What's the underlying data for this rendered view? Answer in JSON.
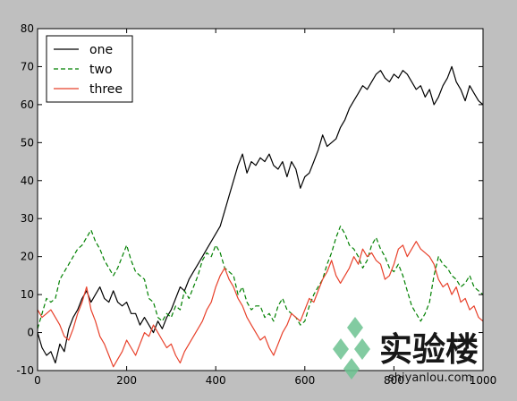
{
  "chart_data": {
    "type": "line",
    "title": "",
    "xlabel": "",
    "ylabel": "",
    "xlim": [
      0,
      1000
    ],
    "ylim": [
      -10,
      80
    ],
    "xticks": [
      0,
      200,
      400,
      600,
      800,
      1000
    ],
    "yticks": [
      -10,
      0,
      10,
      20,
      30,
      40,
      50,
      60,
      70,
      80
    ],
    "grid": false,
    "legend_position": "upper-left",
    "series": [
      {
        "name": "one",
        "color": "#000000",
        "style": "solid",
        "points": [
          [
            0,
            0
          ],
          [
            10,
            -4
          ],
          [
            20,
            -6
          ],
          [
            30,
            -5
          ],
          [
            40,
            -8
          ],
          [
            50,
            -3
          ],
          [
            60,
            -5
          ],
          [
            70,
            1
          ],
          [
            80,
            4
          ],
          [
            90,
            6
          ],
          [
            100,
            9
          ],
          [
            110,
            11
          ],
          [
            120,
            8
          ],
          [
            130,
            10
          ],
          [
            140,
            12
          ],
          [
            150,
            9
          ],
          [
            160,
            8
          ],
          [
            170,
            11
          ],
          [
            180,
            8
          ],
          [
            190,
            7
          ],
          [
            200,
            8
          ],
          [
            210,
            5
          ],
          [
            220,
            5
          ],
          [
            230,
            2
          ],
          [
            240,
            4
          ],
          [
            250,
            2
          ],
          [
            260,
            0
          ],
          [
            270,
            3
          ],
          [
            280,
            1
          ],
          [
            290,
            4
          ],
          [
            300,
            6
          ],
          [
            310,
            9
          ],
          [
            320,
            12
          ],
          [
            330,
            11
          ],
          [
            340,
            14
          ],
          [
            350,
            16
          ],
          [
            360,
            18
          ],
          [
            370,
            20
          ],
          [
            380,
            22
          ],
          [
            390,
            24
          ],
          [
            400,
            26
          ],
          [
            410,
            28
          ],
          [
            420,
            32
          ],
          [
            430,
            36
          ],
          [
            440,
            40
          ],
          [
            450,
            44
          ],
          [
            460,
            47
          ],
          [
            470,
            42
          ],
          [
            480,
            45
          ],
          [
            490,
            44
          ],
          [
            500,
            46
          ],
          [
            510,
            45
          ],
          [
            520,
            47
          ],
          [
            530,
            44
          ],
          [
            540,
            43
          ],
          [
            550,
            45
          ],
          [
            560,
            41
          ],
          [
            570,
            45
          ],
          [
            580,
            43
          ],
          [
            590,
            38
          ],
          [
            600,
            41
          ],
          [
            610,
            42
          ],
          [
            620,
            45
          ],
          [
            630,
            48
          ],
          [
            640,
            52
          ],
          [
            650,
            49
          ],
          [
            660,
            50
          ],
          [
            670,
            51
          ],
          [
            680,
            54
          ],
          [
            690,
            56
          ],
          [
            700,
            59
          ],
          [
            710,
            61
          ],
          [
            720,
            63
          ],
          [
            730,
            65
          ],
          [
            740,
            64
          ],
          [
            750,
            66
          ],
          [
            760,
            68
          ],
          [
            770,
            69
          ],
          [
            780,
            67
          ],
          [
            790,
            66
          ],
          [
            800,
            68
          ],
          [
            810,
            67
          ],
          [
            820,
            69
          ],
          [
            830,
            68
          ],
          [
            840,
            66
          ],
          [
            850,
            64
          ],
          [
            860,
            65
          ],
          [
            870,
            62
          ],
          [
            880,
            64
          ],
          [
            890,
            60
          ],
          [
            900,
            62
          ],
          [
            910,
            65
          ],
          [
            920,
            67
          ],
          [
            930,
            70
          ],
          [
            940,
            66
          ],
          [
            950,
            64
          ],
          [
            960,
            61
          ],
          [
            970,
            65
          ],
          [
            980,
            63
          ],
          [
            990,
            61
          ],
          [
            1000,
            60
          ]
        ]
      },
      {
        "name": "two",
        "color": "#008000",
        "style": "dashed",
        "points": [
          [
            0,
            1
          ],
          [
            10,
            5
          ],
          [
            20,
            9
          ],
          [
            30,
            8
          ],
          [
            40,
            9
          ],
          [
            50,
            14
          ],
          [
            60,
            16
          ],
          [
            70,
            18
          ],
          [
            80,
            20
          ],
          [
            90,
            22
          ],
          [
            100,
            23
          ],
          [
            110,
            25
          ],
          [
            120,
            27
          ],
          [
            130,
            24
          ],
          [
            140,
            22
          ],
          [
            150,
            19
          ],
          [
            160,
            17
          ],
          [
            170,
            15
          ],
          [
            180,
            17
          ],
          [
            190,
            20
          ],
          [
            200,
            23
          ],
          [
            210,
            19
          ],
          [
            220,
            16
          ],
          [
            230,
            15
          ],
          [
            240,
            14
          ],
          [
            250,
            9
          ],
          [
            260,
            8
          ],
          [
            270,
            4
          ],
          [
            280,
            3
          ],
          [
            290,
            5
          ],
          [
            300,
            4
          ],
          [
            310,
            7
          ],
          [
            320,
            6
          ],
          [
            330,
            11
          ],
          [
            340,
            9
          ],
          [
            350,
            12
          ],
          [
            360,
            15
          ],
          [
            370,
            19
          ],
          [
            380,
            21
          ],
          [
            390,
            20
          ],
          [
            400,
            23
          ],
          [
            410,
            21
          ],
          [
            420,
            17
          ],
          [
            430,
            16
          ],
          [
            440,
            15
          ],
          [
            450,
            10
          ],
          [
            460,
            12
          ],
          [
            470,
            8
          ],
          [
            480,
            6
          ],
          [
            490,
            7
          ],
          [
            500,
            7
          ],
          [
            510,
            4
          ],
          [
            520,
            5
          ],
          [
            530,
            3
          ],
          [
            540,
            7
          ],
          [
            550,
            9
          ],
          [
            560,
            6
          ],
          [
            570,
            5
          ],
          [
            580,
            4
          ],
          [
            590,
            2
          ],
          [
            600,
            3
          ],
          [
            610,
            7
          ],
          [
            620,
            10
          ],
          [
            630,
            12
          ],
          [
            640,
            14
          ],
          [
            650,
            18
          ],
          [
            660,
            21
          ],
          [
            670,
            25
          ],
          [
            680,
            28
          ],
          [
            690,
            26
          ],
          [
            700,
            23
          ],
          [
            710,
            22
          ],
          [
            720,
            20
          ],
          [
            730,
            17
          ],
          [
            740,
            19
          ],
          [
            750,
            23
          ],
          [
            760,
            25
          ],
          [
            770,
            22
          ],
          [
            780,
            20
          ],
          [
            790,
            17
          ],
          [
            800,
            16
          ],
          [
            810,
            18
          ],
          [
            820,
            15
          ],
          [
            830,
            11
          ],
          [
            840,
            7
          ],
          [
            850,
            5
          ],
          [
            860,
            3
          ],
          [
            870,
            5
          ],
          [
            880,
            8
          ],
          [
            890,
            15
          ],
          [
            900,
            20
          ],
          [
            910,
            18
          ],
          [
            920,
            17
          ],
          [
            930,
            15
          ],
          [
            940,
            14
          ],
          [
            950,
            12
          ],
          [
            960,
            13
          ],
          [
            970,
            15
          ],
          [
            980,
            12
          ],
          [
            990,
            11
          ],
          [
            1000,
            10
          ]
        ]
      },
      {
        "name": "three",
        "color": "#e8412b",
        "style": "solid",
        "points": [
          [
            0,
            6
          ],
          [
            10,
            4
          ],
          [
            20,
            5
          ],
          [
            30,
            6
          ],
          [
            40,
            4
          ],
          [
            50,
            2
          ],
          [
            60,
            -1
          ],
          [
            70,
            -2
          ],
          [
            80,
            1
          ],
          [
            90,
            5
          ],
          [
            100,
            8
          ],
          [
            110,
            12
          ],
          [
            120,
            6
          ],
          [
            130,
            3
          ],
          [
            140,
            -1
          ],
          [
            150,
            -3
          ],
          [
            160,
            -6
          ],
          [
            170,
            -9
          ],
          [
            180,
            -7
          ],
          [
            190,
            -5
          ],
          [
            200,
            -2
          ],
          [
            210,
            -4
          ],
          [
            220,
            -6
          ],
          [
            230,
            -3
          ],
          [
            240,
            0
          ],
          [
            250,
            -1
          ],
          [
            260,
            2
          ],
          [
            270,
            0
          ],
          [
            280,
            -2
          ],
          [
            290,
            -4
          ],
          [
            300,
            -3
          ],
          [
            310,
            -6
          ],
          [
            320,
            -8
          ],
          [
            330,
            -5
          ],
          [
            340,
            -3
          ],
          [
            350,
            -1
          ],
          [
            360,
            1
          ],
          [
            370,
            3
          ],
          [
            380,
            6
          ],
          [
            390,
            8
          ],
          [
            400,
            12
          ],
          [
            410,
            15
          ],
          [
            420,
            17
          ],
          [
            430,
            14
          ],
          [
            440,
            12
          ],
          [
            450,
            9
          ],
          [
            460,
            7
          ],
          [
            470,
            4
          ],
          [
            480,
            2
          ],
          [
            490,
            0
          ],
          [
            500,
            -2
          ],
          [
            510,
            -1
          ],
          [
            520,
            -4
          ],
          [
            530,
            -6
          ],
          [
            540,
            -3
          ],
          [
            550,
            0
          ],
          [
            560,
            2
          ],
          [
            570,
            5
          ],
          [
            580,
            4
          ],
          [
            590,
            3
          ],
          [
            600,
            6
          ],
          [
            610,
            9
          ],
          [
            620,
            8
          ],
          [
            630,
            11
          ],
          [
            640,
            14
          ],
          [
            650,
            16
          ],
          [
            660,
            19
          ],
          [
            670,
            15
          ],
          [
            680,
            13
          ],
          [
            690,
            15
          ],
          [
            700,
            17
          ],
          [
            710,
            20
          ],
          [
            720,
            18
          ],
          [
            730,
            22
          ],
          [
            740,
            20
          ],
          [
            750,
            21
          ],
          [
            760,
            19
          ],
          [
            770,
            18
          ],
          [
            780,
            14
          ],
          [
            790,
            15
          ],
          [
            800,
            18
          ],
          [
            810,
            22
          ],
          [
            820,
            23
          ],
          [
            830,
            20
          ],
          [
            840,
            22
          ],
          [
            850,
            24
          ],
          [
            860,
            22
          ],
          [
            870,
            21
          ],
          [
            880,
            20
          ],
          [
            890,
            18
          ],
          [
            900,
            14
          ],
          [
            910,
            12
          ],
          [
            920,
            13
          ],
          [
            930,
            10
          ],
          [
            940,
            12
          ],
          [
            950,
            8
          ],
          [
            960,
            9
          ],
          [
            970,
            6
          ],
          [
            980,
            7
          ],
          [
            990,
            4
          ],
          [
            1000,
            3
          ]
        ]
      }
    ]
  },
  "watermark": {
    "title": "实验楼",
    "subtitle": "shiyanlou.com",
    "color": "#6cc290"
  }
}
